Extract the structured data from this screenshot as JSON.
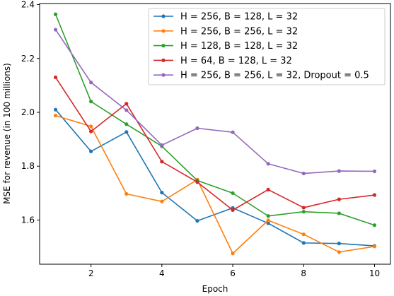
{
  "chart_data": {
    "type": "line",
    "title": "",
    "xlabel": "Epoch",
    "ylabel": "MSE for revenue (in 100 millions)",
    "x": [
      1,
      2,
      3,
      4,
      5,
      6,
      7,
      8,
      9,
      10
    ],
    "xlim": [
      0.55,
      10.45
    ],
    "ylim": [
      1.436,
      2.404
    ],
    "xticks": [
      2,
      4,
      6,
      8,
      10
    ],
    "yticks": [
      1.6,
      1.8,
      2.0,
      2.2,
      2.4
    ],
    "grid": false,
    "legend_position": "top-right",
    "series": [
      {
        "name": "H = 256, B = 128, L = 32",
        "color": "#1f77b4",
        "values": [
          2.01,
          1.855,
          1.927,
          1.702,
          1.597,
          1.645,
          1.588,
          1.515,
          1.513,
          1.504
        ]
      },
      {
        "name": "H = 256, B = 256, L = 32",
        "color": "#ff7f0e",
        "values": [
          1.988,
          1.948,
          1.697,
          1.669,
          1.75,
          1.476,
          1.599,
          1.547,
          1.481,
          1.502
        ]
      },
      {
        "name": "H = 128, B = 128, L = 32",
        "color": "#2ca02c",
        "values": [
          2.364,
          2.04,
          1.956,
          1.874,
          1.747,
          1.7,
          1.615,
          1.631,
          1.625,
          1.581
        ]
      },
      {
        "name": "H = 64, B = 128, L = 32",
        "color": "#d62728",
        "values": [
          2.13,
          1.929,
          2.032,
          1.817,
          1.741,
          1.637,
          1.713,
          1.646,
          1.677,
          1.693
        ]
      },
      {
        "name": "H = 256, B = 256, L = 32, Dropout = 0.5",
        "color": "#9467bd",
        "values": [
          2.307,
          2.111,
          2.008,
          1.878,
          1.941,
          1.926,
          1.809,
          1.773,
          1.782,
          1.781
        ]
      }
    ]
  }
}
